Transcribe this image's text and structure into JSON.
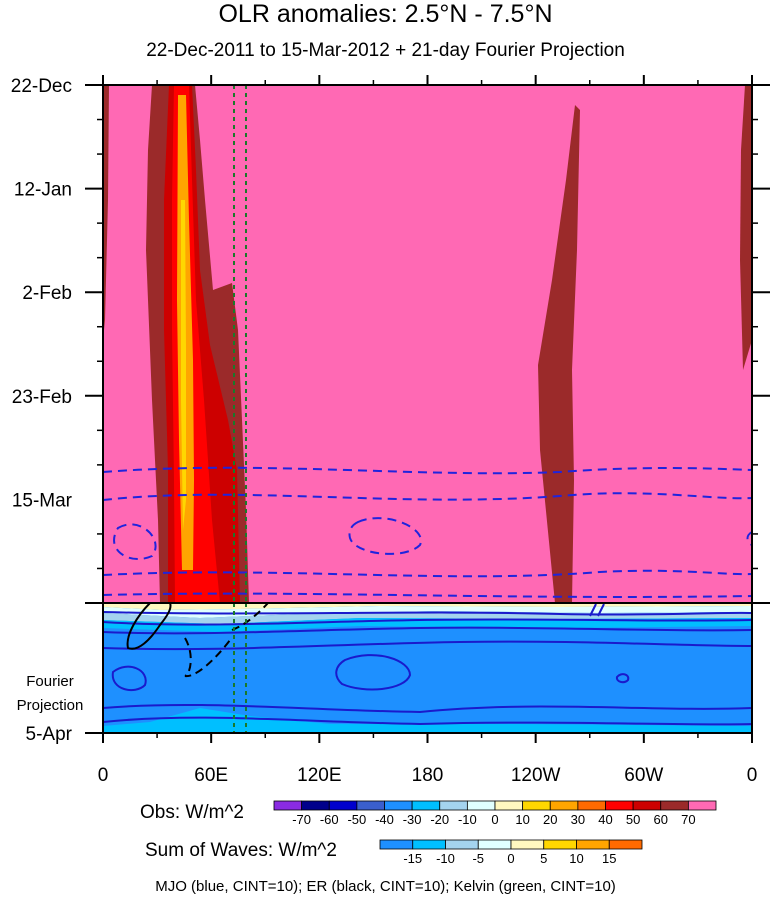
{
  "title": "OLR anomalies: 2.5°N - 7.5°N",
  "subtitle": "22-Dec-2011 to 15-Mar-2012 + 21-day Fourier Projection",
  "chart_data": {
    "type": "heatmap",
    "x_ticks": [
      "0",
      "60E",
      "120E",
      "180",
      "120W",
      "60W",
      "0"
    ],
    "x_range": [
      0,
      360
    ],
    "y_ticks": [
      "22-Dec",
      "12-Jan",
      "2-Feb",
      "23-Feb",
      "15-Mar"
    ],
    "y_range_days": [
      0,
      105
    ],
    "projection_label": [
      "Fourier",
      "Projection"
    ],
    "projection_end_label": "5-Apr",
    "obs_period": "22-Dec-2011 to 15-Mar-2012",
    "forecast_period": "15-Mar-2012 to 5-Apr-2012",
    "obs_colorbar": {
      "label": "Obs: W/m^2",
      "levels": [
        "-70",
        "-60",
        "-50",
        "-40",
        "-30",
        "-20",
        "-10",
        "0",
        "10",
        "20",
        "30",
        "40",
        "50",
        "60",
        "70"
      ],
      "colors": [
        "#8a2be2",
        "#00008b",
        "#0000cd",
        "#3a5fcd",
        "#1e90ff",
        "#00bfff",
        "#a4d3ee",
        "#e0ffff",
        "#fff8c0",
        "#ffd700",
        "#ffa500",
        "#ff6a00",
        "#ff0000",
        "#cd0000",
        "#9b2a2a",
        "#ff69b4"
      ]
    },
    "sow_colorbar": {
      "label": "Sum of Waves: W/m^2",
      "levels": [
        "-15",
        "-10",
        "-5",
        "0",
        "5",
        "10",
        "15"
      ],
      "colors": [
        "#1e90ff",
        "#00bfff",
        "#a4d3ee",
        "#e0ffff",
        "#fff8c0",
        "#ffd700",
        "#ffa500",
        "#ff6a00"
      ]
    },
    "contours": [
      {
        "name": "MJO",
        "color": "blue",
        "cint": 10
      },
      {
        "name": "ER",
        "color": "black",
        "cint": 10
      },
      {
        "name": "Kelvin",
        "color": "green",
        "cint": 10
      }
    ]
  },
  "caption": "MJO (blue, CINT=10); ER (black, CINT=10); Kelvin (green, CINT=10)"
}
